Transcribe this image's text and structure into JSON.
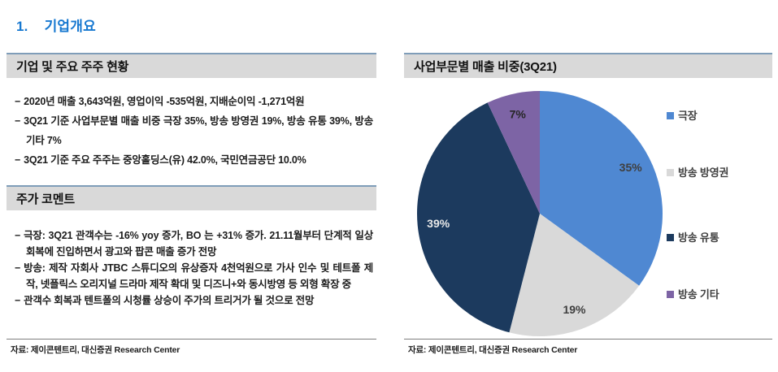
{
  "page": {
    "section_number": "1.",
    "section_title": "기업개요"
  },
  "left_panel": {
    "bullet_marker": "−",
    "box1": {
      "title": "기업 및 주요 주주 현황",
      "bullets": [
        "2020년 매출 3,643억원, 영업이익 -535억원, 지배순이익 -1,271억원",
        "3Q21 기준 사업부문별 매출 비중 극장 35%, 방송 방영권 19%, 방송 유통 39%, 방송 기타 7%",
        "3Q21 기준 주요 주주는 중앙홀딩스(유) 42.0%, 국민연금공단 10.0%"
      ]
    },
    "box2": {
      "title": "주가 코멘트",
      "bullets": [
        "극장: 3Q21 관객수는 -16% yoy 증가, BO 는 +31% 증가. 21.11월부터 단계적 일상회복에 진입하면서 광고와 팝콘 매출 증가 전망",
        "방송: 제작 자회사 JTBC 스튜디오의 유상증자 4천억원으로 가사 인수 및 테트폴 제작, 넷플릭스 오리지널 드라마 제작 확대 및 디즈니+와 동시방영 등 외형 확장 중",
        "관객수 회복과 텐트폴의 시청률 상승이 주가의 트리거가 될 것으로 전망"
      ]
    },
    "source": "자료: 제이콘텐트리, 대신증권 Research Center"
  },
  "right_panel": {
    "title": "사업부문별 매출 비중(3Q21)",
    "source": "자료: 제이콘텐트리, 대신증권 Research Center"
  },
  "chart_data": {
    "type": "pie",
    "title": "사업부문별 매출 비중(3Q21)",
    "categories": [
      "극장",
      "방송 방영권",
      "방송 유통",
      "방송 기타"
    ],
    "values": [
      35,
      19,
      39,
      7
    ],
    "unit": "%",
    "data_labels": [
      "35%",
      "19%",
      "39%",
      "7%"
    ],
    "colors": [
      "#4f88d2",
      "#d9d9d9",
      "#1c3a5e",
      "#7d64a5"
    ],
    "label_colors": [
      "#3f3f3f",
      "#3f3f3f",
      "#e8e8e8",
      "#262626"
    ],
    "start_angle_deg": 0,
    "direction": "clockwise",
    "legend_position": "right"
  },
  "theme": {
    "title_blue": "#1778d0",
    "bar_background": "#d9d9d9",
    "bar_top_border": "#7f9db9",
    "source_rule": "#7f7f7f"
  }
}
